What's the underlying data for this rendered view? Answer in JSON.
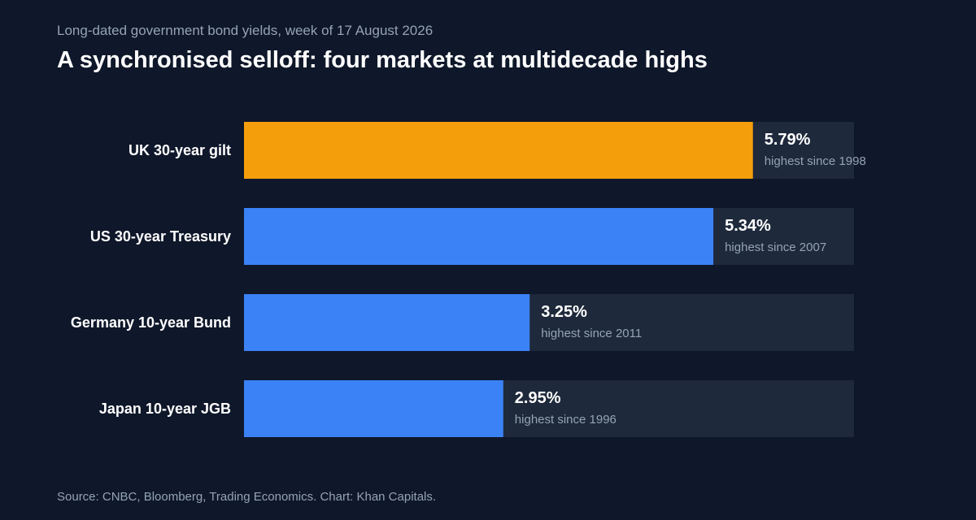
{
  "header": {
    "subtitle": "Long-dated government bond yields, week of 17 August 2026",
    "title": "A synchronised selloff: four markets at multidecade highs"
  },
  "footer": {
    "source": "Source: CNBC, Bloomberg, Trading Economics. Chart: Khan Capitals."
  },
  "chart_data": {
    "type": "bar",
    "orientation": "horizontal",
    "title": "A synchronised selloff: four markets at multidecade highs",
    "subtitle": "Long-dated government bond yields, week of 17 August 2026",
    "xlabel": "",
    "ylabel": "",
    "unit": "%",
    "xlim": [
      0,
      6.94
    ],
    "grid": false,
    "legend": "none",
    "categories": [
      "UK 30-year gilt",
      "US 30-year Treasury",
      "Germany 10-year Bund",
      "Japan 10-year JGB"
    ],
    "values": [
      5.79,
      5.34,
      3.25,
      2.95
    ],
    "value_labels": [
      "5.79%",
      "5.34%",
      "3.25%",
      "2.95%"
    ],
    "annotations": [
      "highest since 1998",
      "highest since 2007",
      "highest since 2011",
      "highest since 1996"
    ],
    "bar_colors": [
      "#f59e0b",
      "#3b82f6",
      "#3b82f6",
      "#3b82f6"
    ],
    "track_color": "#1e293b",
    "label_color": "#ffffff",
    "annotation_color": "#94a3b8"
  }
}
